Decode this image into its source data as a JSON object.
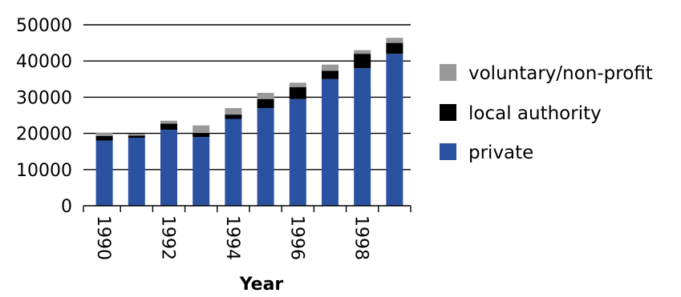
{
  "chart_data": {
    "type": "bar",
    "stacked": true,
    "title": "",
    "xlabel": "Year",
    "ylabel": "",
    "categories": [
      "1990",
      "1991",
      "1992",
      "1993",
      "1994",
      "1995",
      "1996",
      "1997",
      "1998",
      "1999"
    ],
    "x_tick_labels": [
      "1990",
      "",
      "1992",
      "",
      "1994",
      "",
      "1996",
      "",
      "1998",
      ""
    ],
    "y_ticks": [
      0,
      10000,
      20000,
      30000,
      40000,
      50000
    ],
    "ylim": [
      0,
      50000
    ],
    "grid": "horizontal",
    "legend_position": "right",
    "series": [
      {
        "name": "private",
        "color": "#2b52a0",
        "values": [
          18000,
          18800,
          21000,
          19000,
          24000,
          27000,
          29500,
          35000,
          38000,
          42000
        ]
      },
      {
        "name": "local authority",
        "color": "#000000",
        "values": [
          1300,
          600,
          1700,
          1100,
          1200,
          2500,
          3300,
          2300,
          4000,
          3000
        ]
      },
      {
        "name": "voluntary/non-profit",
        "color": "#999999",
        "values": [
          900,
          400,
          800,
          2100,
          1800,
          1700,
          1200,
          1700,
          1000,
          1400
        ]
      }
    ],
    "legend_order": [
      "voluntary/non-profit",
      "local authority",
      "private"
    ]
  }
}
